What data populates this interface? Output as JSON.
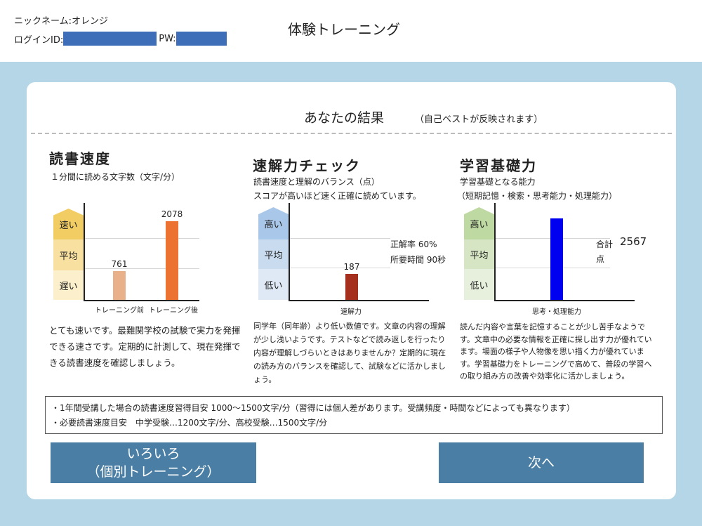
{
  "header": {
    "nickname": "ニックネーム:オレンジ",
    "login_label": "ログインID:",
    "pw_label": "PW:",
    "app_title": "体験トレーニング",
    "mask_color": "#3e6eb8"
  },
  "result": {
    "title": "あなたの結果",
    "subtitle": "（自己ベストが反映されます）"
  },
  "reading": {
    "title": "読書速度",
    "desc": "１分間に読める文字数（文字/分）",
    "tiers": [
      "速い",
      "平均",
      "遅い"
    ],
    "body": "とても速いです。最難関学校の試験で実力を発揮できる速さです。定期的に計測して、現在発揮できる読書速度を確認しましょう。"
  },
  "accuracy": {
    "title": "速解力チェック",
    "desc": [
      "読書速度と理解のバランス（点）",
      "スコアが高いほど速く正確に読めています。"
    ],
    "tiers": [
      "高い",
      "平均",
      "低い"
    ],
    "rate_label": "正解率 60%",
    "time_label": "所要時間 90秒",
    "body": "同学年（同年齢）より低い数値です。文章の内容の理解が少し浅いようです。テストなどで読み返しを行ったり内容が理解しづらいときはありませんか？定期的に現在の読み方のバランスを確認して、試験などに活かしましょう。"
  },
  "learning": {
    "title": "学習基礎力",
    "desc": [
      "学習基礎となる能力",
      "（短期記憶・検索・思考能力・処理能力）"
    ],
    "tiers": [
      "高い",
      "平均",
      "低い"
    ],
    "total_label": "合計",
    "total_value": "2567",
    "unit_label": "点",
    "body": "読んだ内容や言葉を記憶することが少し苦手なようです。文章中の必要な情報を正確に探し出す力が優れています。場面の様子や人物像を思い描く力が優れています。学習基礎力をトレーニングで高めて、普段の学習への取り組み方の改善や効率化に活かしましょう。"
  },
  "notes": [
    "・1年間受講した場合の読書速度習得目安 1000～1500文字/分（習得には個人差があります。受講頻度・時間などによっても異なります）",
    "・必要読書速度目安　中学受験…1200文字/分、高校受験…1500文字/分"
  ],
  "buttons": {
    "individual_line1": "いろいろ",
    "individual_line2": "（個別トレーニング）",
    "next": "次へ"
  },
  "tier_colors": {
    "yellow": [
      "#f2cd63",
      "#f8e1a0",
      "#fcefcb"
    ],
    "blue": [
      "#a9c7e8",
      "#c8dbef",
      "#dfe9f5"
    ],
    "green": [
      "#bfd9a2",
      "#d6e6c4",
      "#e7f0dc"
    ]
  },
  "chart_data": [
    {
      "type": "bar",
      "categories": [
        "トレーニング前",
        "トレーニング後"
      ],
      "values": [
        761,
        2078
      ],
      "colors": [
        "#e8b18a",
        "#ec7232"
      ],
      "ylim": [
        0,
        2600
      ]
    },
    {
      "type": "bar",
      "categories": [
        "速解力"
      ],
      "values": [
        187
      ],
      "colors": [
        "#a5301e"
      ],
      "ylim": [
        0,
        700
      ]
    },
    {
      "type": "bar",
      "categories": [
        "思考・処理能力"
      ],
      "values": [
        2567
      ],
      "colors": [
        "#0000f0"
      ],
      "ylim": [
        0,
        3100
      ]
    }
  ]
}
